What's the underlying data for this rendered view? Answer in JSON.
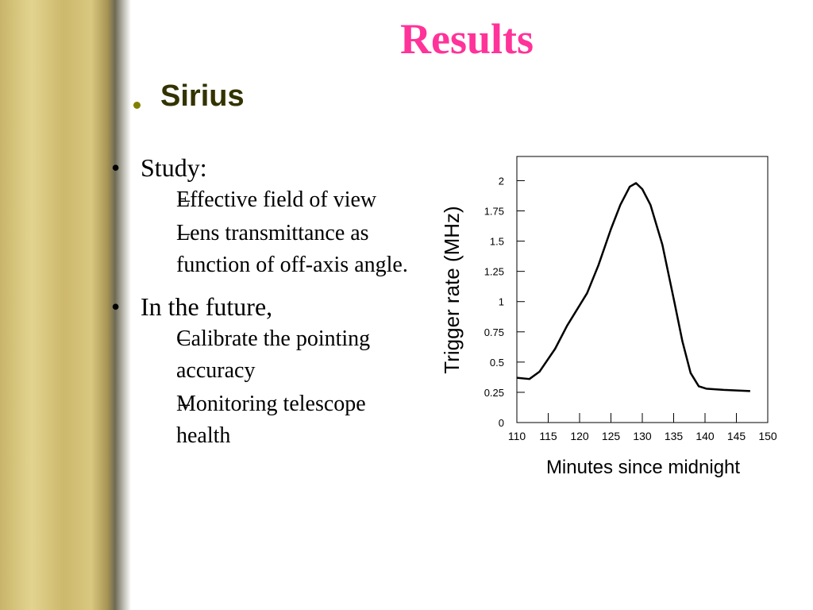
{
  "slide": {
    "title": "Results",
    "heading": "Sirius",
    "bullets": [
      {
        "text": "Study:",
        "subitems": [
          "Effective field of view",
          "Lens transmittance as function of off-axis angle."
        ]
      },
      {
        "text": "In the future,",
        "subitems": [
          "Calibrate the pointing accuracy",
          "Monitoring telescope health"
        ]
      }
    ]
  },
  "chart_data": {
    "type": "line",
    "xlabel": "Minutes since midnight",
    "ylabel": "Trigger rate (MHz)",
    "x": [
      110,
      112,
      113.6,
      116.1,
      118,
      121.2,
      123,
      125,
      126.5,
      128,
      129,
      130,
      131.3,
      133.2,
      135.1,
      136.4,
      137.7,
      139,
      140.2,
      143,
      147.2
    ],
    "values": [
      0.37,
      0.36,
      0.42,
      0.61,
      0.8,
      1.07,
      1.3,
      1.6,
      1.8,
      1.95,
      1.98,
      1.93,
      1.8,
      1.47,
      1.0,
      0.67,
      0.41,
      0.3,
      0.28,
      0.27,
      0.26
    ],
    "color": "#000000",
    "xlim": [
      110,
      150
    ],
    "xticks": [
      110,
      115,
      120,
      125,
      130,
      135,
      140,
      145,
      150
    ],
    "ylim": [
      0,
      2.2
    ],
    "yticks": [
      0,
      0.25,
      0.5,
      0.75,
      1,
      1.25,
      1.5,
      1.75,
      2
    ]
  }
}
